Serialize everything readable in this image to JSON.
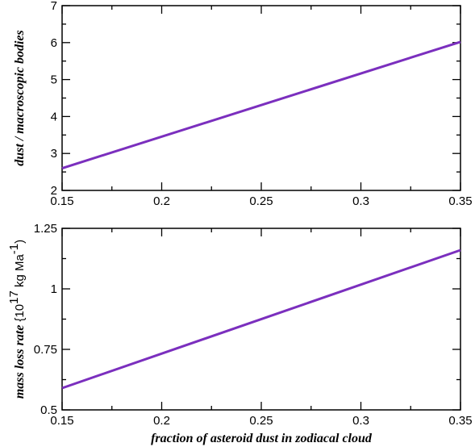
{
  "chart_data": [
    {
      "type": "line",
      "title": "",
      "xlabel": "",
      "ylabel": "dust / macroscopic bodies",
      "xlim": [
        0.15,
        0.35
      ],
      "ylim": [
        2,
        7
      ],
      "x_ticks": [
        "0.15",
        "0.2",
        "0.25",
        "0.3",
        "0.35"
      ],
      "y_ticks": [
        "2",
        "3",
        "4",
        "5",
        "6",
        "7"
      ],
      "grid": false,
      "legend": "none",
      "series": [
        {
          "color": "#7b2fbe",
          "x": [
            0.15,
            0.35
          ],
          "y": [
            2.6,
            6.02
          ]
        }
      ]
    },
    {
      "type": "line",
      "title": "",
      "xlabel": "fraction of asteroid dust in zodiacal cloud",
      "ylabel": "mass loss rate",
      "ylabel_unit": "{10",
      "ylabel_unit_exp": "17",
      "ylabel_unit_mid": " kg Ma",
      "ylabel_unit_exp2": "-1",
      "ylabel_unit_end": ")",
      "xlim": [
        0.15,
        0.35
      ],
      "ylim": [
        0.5,
        1.25
      ],
      "x_ticks": [
        "0.15",
        "0.2",
        "0.25",
        "0.3",
        "0.35"
      ],
      "y_ticks": [
        "0.5",
        "0.75",
        "1",
        "1.25"
      ],
      "grid": false,
      "legend": "none",
      "series": [
        {
          "color": "#7b2fbe",
          "x": [
            0.15,
            0.35
          ],
          "y": [
            0.59,
            1.16
          ]
        }
      ]
    }
  ]
}
